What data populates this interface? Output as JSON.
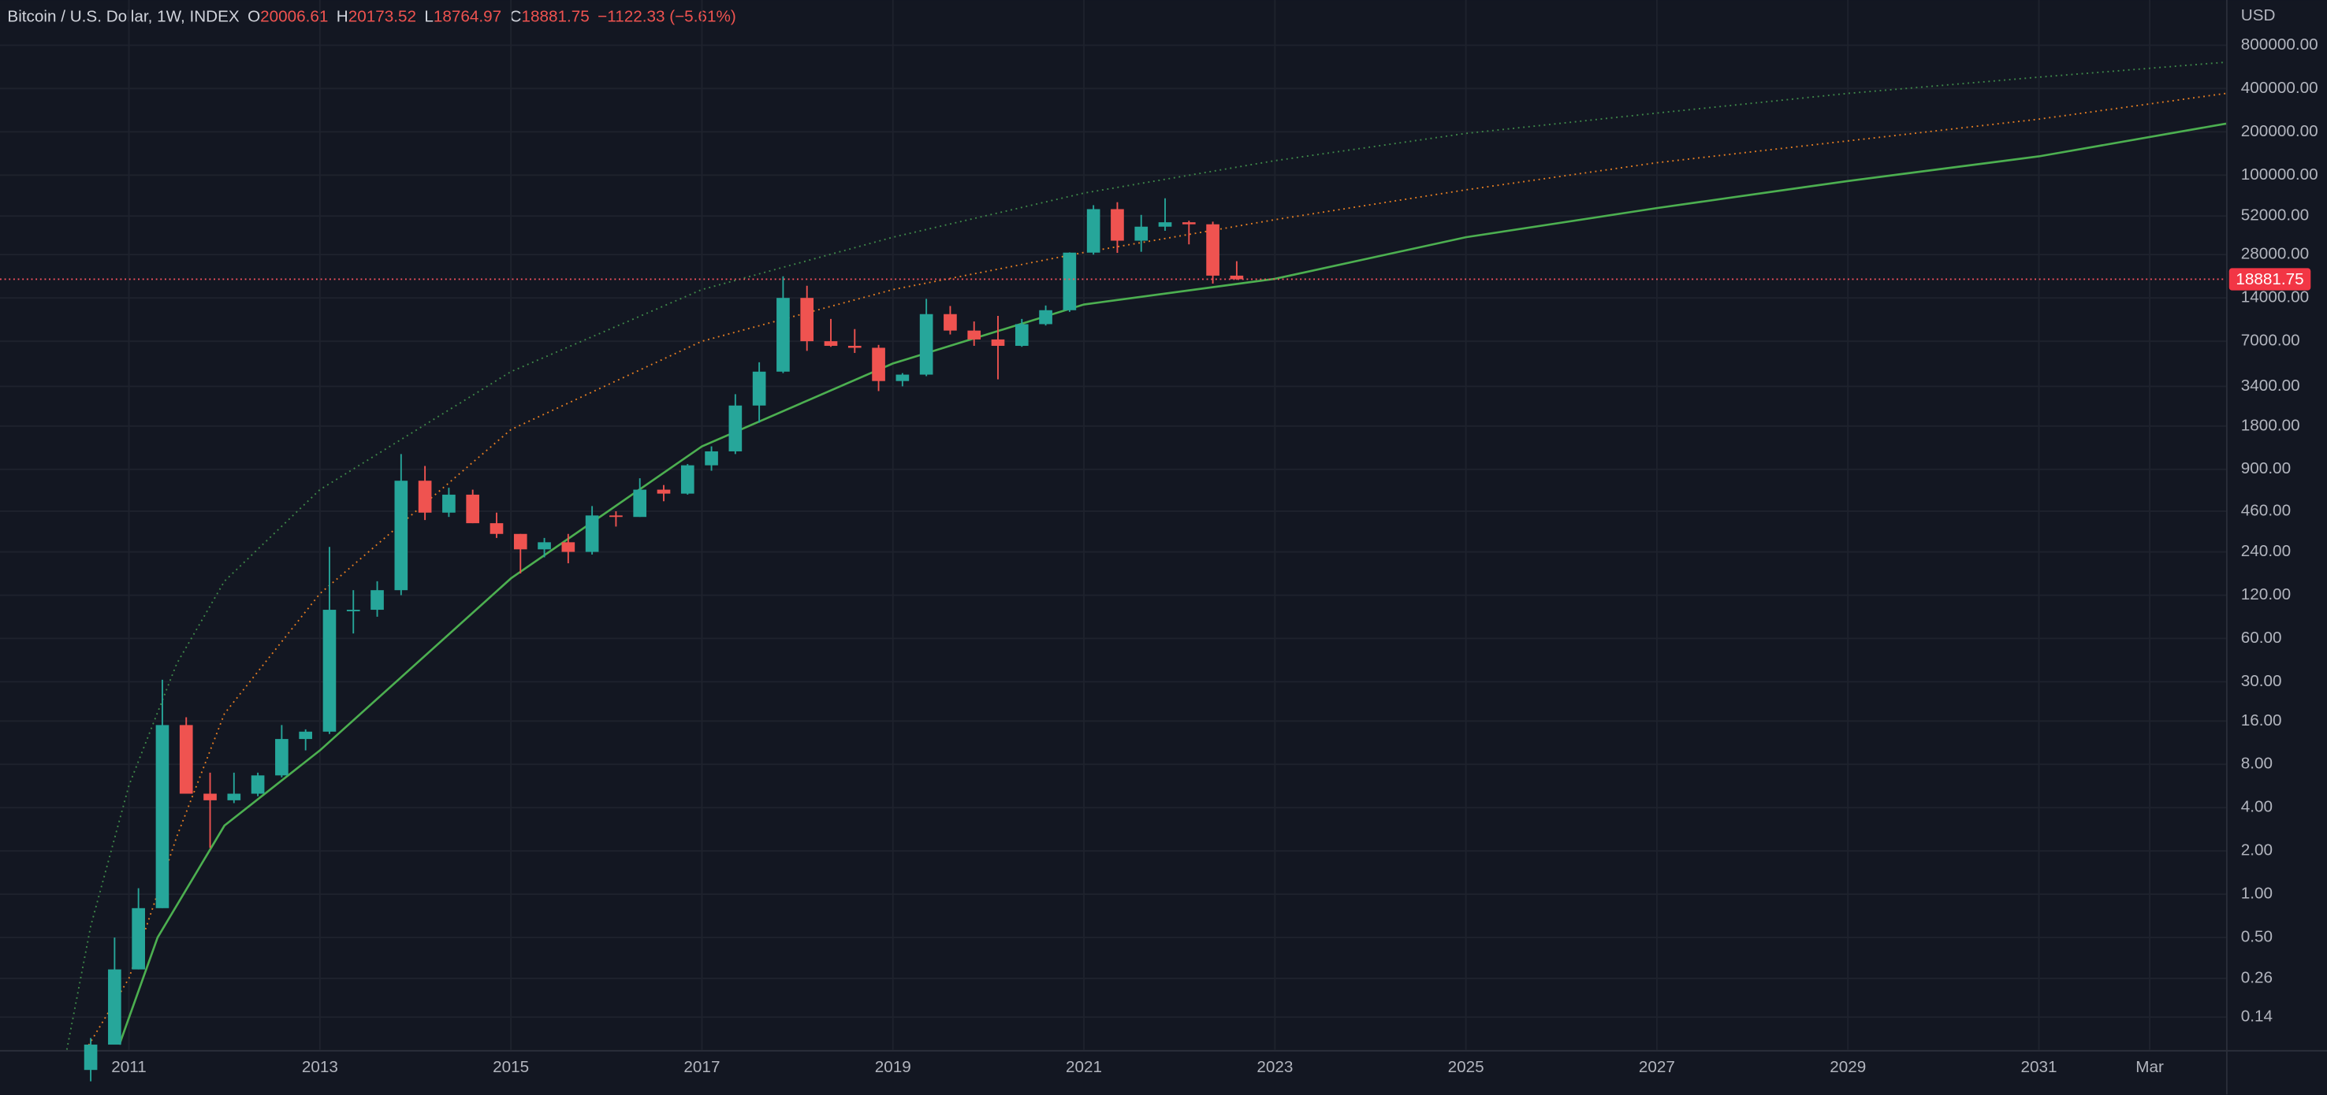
{
  "chart_data": {
    "type": "candlestick",
    "title": "Bitcoin / U.S. Dollar, 1W, INDEX",
    "ohlc_header": [
      {
        "key": "O",
        "value": 20006.61
      },
      {
        "key": "H",
        "value": 20173.52
      },
      {
        "key": "L",
        "value": 18764.97
      },
      {
        "key": "C",
        "value": 18881.75
      }
    ],
    "change": "−1122.33 (−5.61%)",
    "currency": "USD",
    "last_price": 18881.75,
    "up_color": "#26a69a",
    "down_color": "#ef5350",
    "log_y": true,
    "grid": true,
    "x": [
      2010.6,
      2010.85,
      2011.1,
      2011.35,
      2011.6,
      2011.85,
      2012.1,
      2012.35,
      2012.6,
      2012.85,
      2013.1,
      2013.35,
      2013.6,
      2013.85,
      2014.1,
      2014.35,
      2014.6,
      2014.85,
      2015.1,
      2015.35,
      2015.6,
      2015.85,
      2016.1,
      2016.35,
      2016.6,
      2016.85,
      2017.1,
      2017.35,
      2017.6,
      2017.85,
      2018.1,
      2018.35,
      2018.6,
      2018.85,
      2019.1,
      2019.35,
      2019.6,
      2019.85,
      2020.1,
      2020.35,
      2020.6,
      2020.85,
      2021.1,
      2021.35,
      2021.6,
      2021.85,
      2022.1,
      2022.35,
      2022.6
    ],
    "open": [
      0.06,
      0.09,
      0.3,
      0.8,
      15,
      5,
      4.5,
      5,
      6.7,
      12,
      13.5,
      95,
      95,
      130,
      750,
      450,
      600,
      380,
      320,
      250,
      280,
      240,
      430,
      420,
      650,
      610,
      960,
      1200,
      2500,
      4300,
      14000,
      7000,
      6500,
      6300,
      3700,
      4100,
      10800,
      8300,
      7200,
      6500,
      9200,
      11500,
      28900,
      58000,
      35000,
      43800,
      47000,
      45500,
      20000
    ],
    "high": [
      0.1,
      0.5,
      1.1,
      31,
      17,
      7,
      7,
      7,
      15,
      14,
      260,
      130,
      150,
      1150,
      950,
      670,
      650,
      450,
      320,
      300,
      320,
      500,
      460,
      780,
      700,
      980,
      1300,
      3000,
      5000,
      19800,
      17000,
      10000,
      8500,
      6600,
      4200,
      13800,
      12300,
      9600,
      10500,
      10000,
      12400,
      29000,
      61800,
      64800,
      52900,
      69000,
      48200,
      47500,
      25200
    ],
    "low": [
      0.05,
      0.09,
      0.3,
      0.8,
      5,
      2.1,
      4.3,
      4.8,
      6.5,
      10,
      13,
      65,
      85,
      120,
      400,
      420,
      380,
      300,
      170,
      220,
      200,
      230,
      360,
      420,
      540,
      600,
      880,
      1150,
      1900,
      4200,
      6000,
      6400,
      5800,
      3150,
      3400,
      4000,
      7800,
      6500,
      3800,
      6400,
      9000,
      11200,
      28000,
      28800,
      29300,
      41000,
      33000,
      17600,
      18700
    ],
    "close": [
      0.09,
      0.3,
      0.8,
      15,
      5,
      4.5,
      5,
      6.7,
      12,
      13.5,
      95,
      95,
      130,
      750,
      450,
      600,
      380,
      320,
      250,
      280,
      240,
      430,
      420,
      650,
      610,
      960,
      1200,
      2500,
      4300,
      14000,
      7000,
      6500,
      6300,
      3700,
      4100,
      10800,
      8300,
      7200,
      6500,
      9200,
      11500,
      28900,
      58000,
      35000,
      43800,
      47000,
      45500,
      20000,
      18881.75
    ],
    "series": [
      {
        "color": "#3f8a4a",
        "style": "dotted",
        "x": [
          2010.35,
          2010.6,
          2011,
          2011.5,
          2012,
          2013,
          2015,
          2017,
          2019,
          2021,
          2023,
          2025,
          2027,
          2029,
          2031,
          2032.96
        ],
        "values": [
          0.083,
          0.6,
          5.7,
          40,
          150,
          650,
          4300,
          16000,
          37000,
          75000,
          126000,
          195000,
          270000,
          370000,
          480000,
          610000
        ]
      },
      {
        "color": "#e67e22",
        "style": "dotted",
        "x": [
          2010.55,
          2011,
          2011.5,
          2012,
          2013,
          2015,
          2017,
          2019,
          2021,
          2023,
          2025,
          2027,
          2029,
          2031,
          2032.96
        ],
        "values": [
          0.083,
          0.26,
          2.5,
          18,
          123,
          1700,
          7000,
          16000,
          29000,
          49000,
          79000,
          122000,
          173000,
          245000,
          370000
        ]
      },
      {
        "color": "#4caf50",
        "style": "solid",
        "x": [
          2010.9,
          2011.3,
          2012,
          2013,
          2015,
          2017,
          2019,
          2021,
          2023,
          2025,
          2027,
          2029,
          2031,
          2032.96
        ],
        "values": [
          0.09,
          0.5,
          3,
          10,
          157,
          1300,
          4900,
          12600,
          19000,
          37000,
          59000,
          91000,
          135000,
          228000
        ]
      }
    ],
    "xlim": [
      2009.65,
      2032.96
    ],
    "ylim": [
      0.0825,
      1650000
    ],
    "xticks": [
      2011,
      2013,
      2015,
      2017,
      2019,
      2021,
      2023,
      2025,
      2027,
      2029,
      2031,
      {
        "value": 2032.16,
        "label": "Mar"
      }
    ],
    "yticks": [
      {
        "value": 800000,
        "label": "800000.00"
      },
      {
        "value": 400000,
        "label": "400000.00"
      },
      {
        "value": 200000,
        "label": "200000.00"
      },
      {
        "value": 100000,
        "label": "100000.00"
      },
      {
        "value": 52000,
        "label": "52000.00"
      },
      {
        "value": 28000,
        "label": "28000.00"
      },
      {
        "value": 14000,
        "label": "14000.00"
      },
      {
        "value": 7000,
        "label": "7000.00"
      },
      {
        "value": 3400,
        "label": "3400.00"
      },
      {
        "value": 1800,
        "label": "1800.00"
      },
      {
        "value": 900,
        "label": "900.00"
      },
      {
        "value": 460,
        "label": "460.00"
      },
      {
        "value": 240,
        "label": "240.00"
      },
      {
        "value": 120,
        "label": "120.00"
      },
      {
        "value": 60,
        "label": "60.00"
      },
      {
        "value": 30,
        "label": "30.00"
      },
      {
        "value": 16,
        "label": "16.00"
      },
      {
        "value": 8,
        "label": "8.00"
      },
      {
        "value": 4,
        "label": "4.00"
      },
      {
        "value": 2,
        "label": "2.00"
      },
      {
        "value": 1,
        "label": "1.00"
      },
      {
        "value": 0.5,
        "label": "0.50"
      },
      {
        "value": 0.26,
        "label": "0.26"
      },
      {
        "value": 0.14,
        "label": "0.14"
      }
    ]
  }
}
